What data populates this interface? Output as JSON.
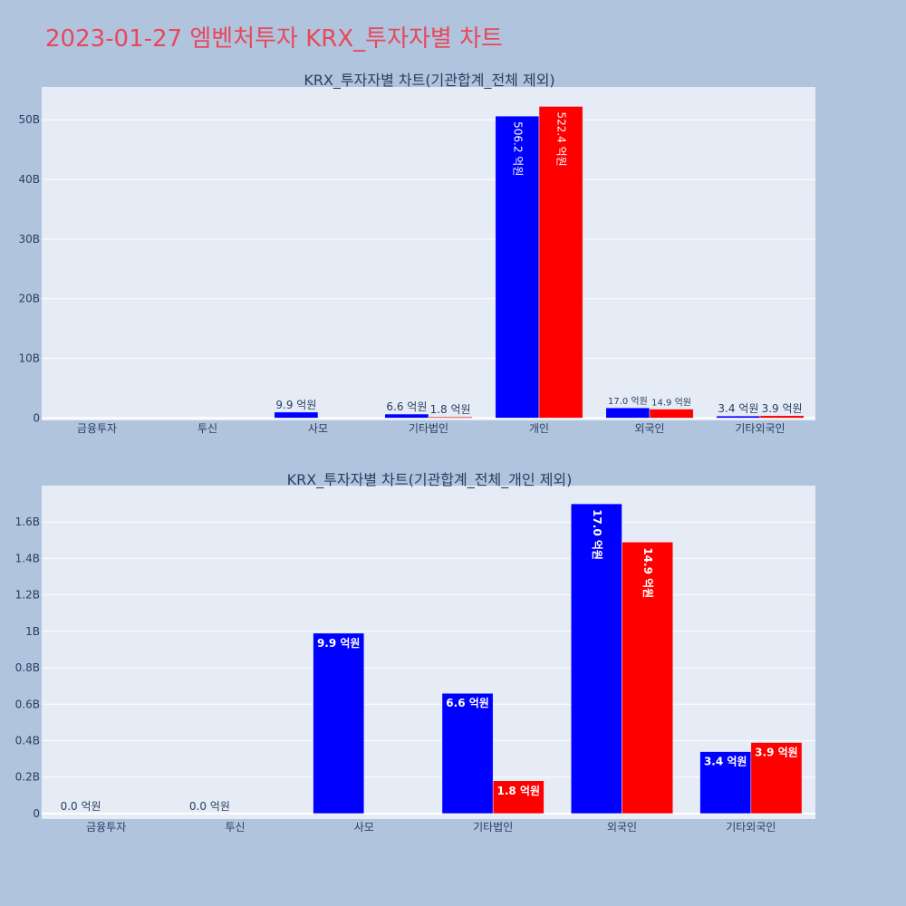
{
  "page_title": "2023-01-27 엠벤처투자 KRX_투자자별 차트",
  "colors": {
    "series_a": "#0000ff",
    "series_b": "#ff0000",
    "plot_bg": "#e5ecf6",
    "page_bg": "#b0c4de"
  },
  "chart_data": [
    {
      "type": "bar",
      "title": "KRX_투자자별 차트(기관합계_전체 제외)",
      "categories": [
        "금융투자",
        "투신",
        "사모",
        "기타법인",
        "개인",
        "외국인",
        "기타외국인"
      ],
      "ylim": [
        -0.4,
        55.5
      ],
      "ytick_values": [
        0,
        10,
        20,
        30,
        40,
        50
      ],
      "yticks": [
        "0",
        "10B",
        "20B",
        "30B",
        "40B",
        "50B"
      ],
      "grid": true,
      "series": [
        {
          "color": "#0000ff",
          "values": [
            0,
            0,
            0.99,
            0.66,
            50.62,
            1.7,
            0.34
          ],
          "labels": [
            "",
            "",
            "9.9 억원",
            "6.6 억원",
            "506.2 억원",
            "17.0 억원",
            "3.4 억원"
          ]
        },
        {
          "color": "#ff0000",
          "values": [
            0,
            0,
            0,
            0.18,
            52.24,
            1.49,
            0.39
          ],
          "labels": [
            "",
            "",
            "",
            "1.8 억원",
            "522.4 억원",
            "14.9 억원",
            "3.9 억원"
          ]
        }
      ]
    },
    {
      "type": "bar",
      "title": "KRX_투자자별 차트(기관합계_전체_개인 제외)",
      "categories": [
        "금융투자",
        "투신",
        "사모",
        "기타법인",
        "외국인",
        "기타외국인"
      ],
      "ylim": [
        -0.03,
        1.8
      ],
      "ytick_values": [
        0,
        0.2,
        0.4,
        0.6,
        0.8,
        1.0,
        1.2,
        1.4,
        1.6
      ],
      "yticks": [
        "0",
        "0.2B",
        "0.4B",
        "0.6B",
        "0.8B",
        "1B",
        "1.2B",
        "1.4B",
        "1.6B"
      ],
      "grid": true,
      "series": [
        {
          "color": "#0000ff",
          "values": [
            0,
            0,
            0.99,
            0.66,
            1.7,
            0.34
          ],
          "labels": [
            "0.0 억원",
            "0.0 억원",
            "9.9 억원",
            "6.6 억원",
            "17.0 억원",
            "3.4 억원"
          ]
        },
        {
          "color": "#ff0000",
          "values": [
            0,
            0,
            0,
            0.18,
            1.49,
            0.39
          ],
          "labels": [
            "",
            "",
            "",
            "1.8 억원",
            "14.9 억원",
            "3.9 억원"
          ]
        }
      ]
    }
  ]
}
